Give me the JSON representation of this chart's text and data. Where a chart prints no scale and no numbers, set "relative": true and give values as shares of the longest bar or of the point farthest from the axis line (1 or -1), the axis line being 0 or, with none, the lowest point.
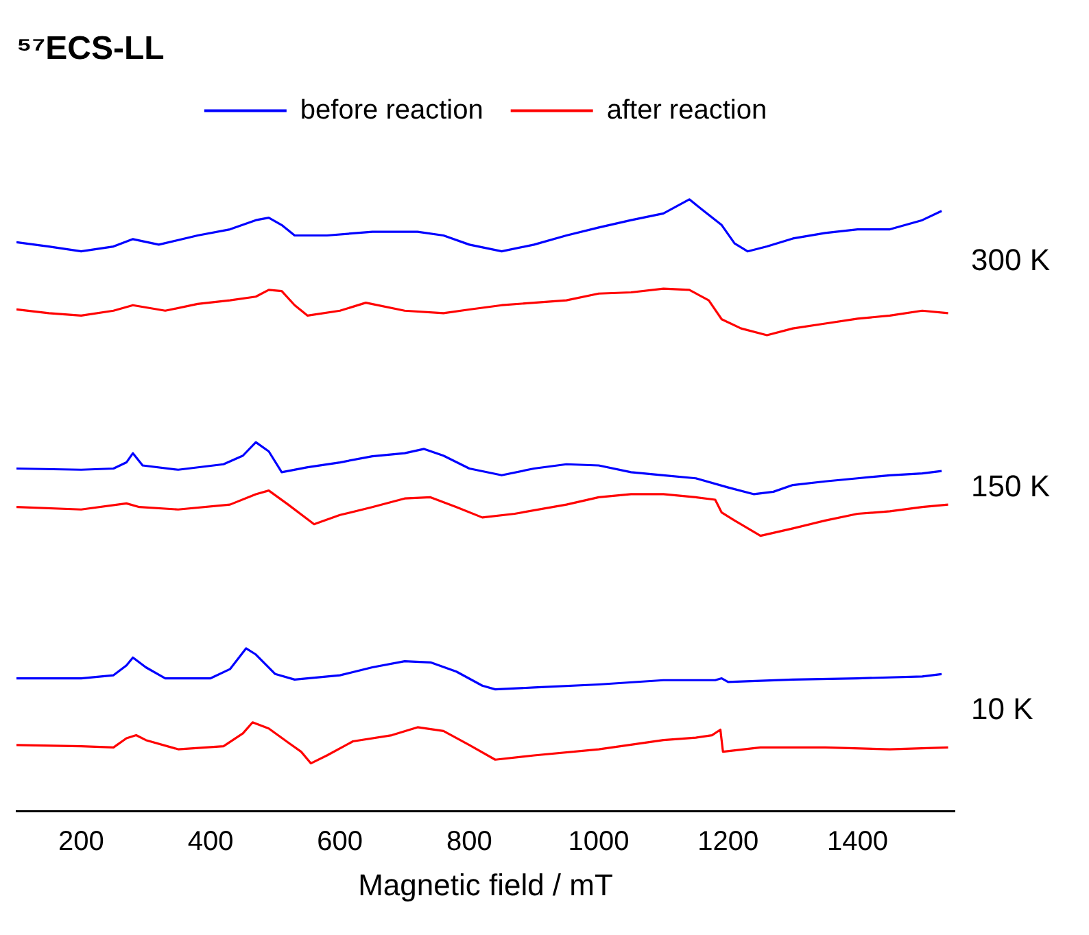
{
  "chart_data": {
    "type": "line",
    "title": "⁵⁷ECS-LL",
    "xlabel": "Magnetic field / mT",
    "relative": true,
    "xlim": [
      100,
      1550
    ],
    "xticks": [
      200,
      400,
      600,
      800,
      1000,
      1200,
      1400
    ],
    "grid": false,
    "legend": "top",
    "marker": "none",
    "line_style": "solid",
    "annotations": [
      "300 K",
      "150 K",
      "10 K"
    ],
    "series": [
      {
        "name": "before reaction",
        "color": "#0000ff",
        "x": [
          100,
          150,
          200,
          250,
          280,
          320,
          380,
          430,
          470,
          490,
          510,
          530,
          580,
          650,
          720,
          760,
          800,
          850,
          900,
          950,
          1000,
          1050,
          1100,
          1140,
          1160,
          1190,
          1210,
          1230,
          1260,
          1300,
          1350,
          1400,
          1450,
          1500,
          1530
        ],
        "values": [
          0.93,
          0.923,
          0.915,
          0.923,
          0.935,
          0.926,
          0.941,
          0.951,
          0.966,
          0.97,
          0.958,
          0.941,
          0.941,
          0.947,
          0.947,
          0.941,
          0.926,
          0.915,
          0.926,
          0.941,
          0.954,
          0.966,
          0.977,
          1.0,
          0.983,
          0.958,
          0.928,
          0.915,
          0.923,
          0.936,
          0.945,
          0.951,
          0.951,
          0.966,
          0.981
        ]
      },
      {
        "name": "after reaction",
        "color": "#ff0000",
        "x": [
          100,
          150,
          200,
          250,
          280,
          330,
          380,
          430,
          470,
          490,
          510,
          530,
          550,
          600,
          640,
          700,
          760,
          800,
          850,
          900,
          950,
          1000,
          1050,
          1100,
          1140,
          1170,
          1190,
          1220,
          1260,
          1300,
          1350,
          1400,
          1450,
          1500,
          1540
        ],
        "values": [
          0.82,
          0.814,
          0.81,
          0.818,
          0.827,
          0.818,
          0.829,
          0.835,
          0.841,
          0.852,
          0.85,
          0.827,
          0.81,
          0.818,
          0.831,
          0.818,
          0.814,
          0.82,
          0.827,
          0.831,
          0.835,
          0.846,
          0.848,
          0.854,
          0.852,
          0.835,
          0.804,
          0.789,
          0.778,
          0.789,
          0.797,
          0.805,
          0.81,
          0.818,
          0.814
        ]
      },
      {
        "color": "#0000ff",
        "x": [
          100,
          200,
          250,
          270,
          280,
          295,
          350,
          420,
          450,
          470,
          490,
          510,
          550,
          600,
          650,
          700,
          730,
          760,
          800,
          850,
          900,
          950,
          1000,
          1050,
          1100,
          1150,
          1200,
          1240,
          1270,
          1300,
          1350,
          1400,
          1450,
          1500,
          1530
        ],
        "values": [
          0.56,
          0.558,
          0.56,
          0.57,
          0.585,
          0.565,
          0.558,
          0.567,
          0.581,
          0.603,
          0.588,
          0.554,
          0.562,
          0.57,
          0.58,
          0.585,
          0.592,
          0.581,
          0.56,
          0.549,
          0.56,
          0.567,
          0.565,
          0.554,
          0.549,
          0.544,
          0.529,
          0.518,
          0.522,
          0.533,
          0.539,
          0.544,
          0.549,
          0.552,
          0.556
        ]
      },
      {
        "color": "#ff0000",
        "x": [
          100,
          200,
          270,
          290,
          350,
          430,
          470,
          490,
          520,
          560,
          600,
          650,
          700,
          740,
          780,
          820,
          870,
          950,
          1000,
          1050,
          1100,
          1150,
          1180,
          1190,
          1210,
          1250,
          1300,
          1350,
          1400,
          1450,
          1500,
          1540
        ],
        "values": [
          0.497,
          0.493,
          0.503,
          0.497,
          0.493,
          0.501,
          0.518,
          0.524,
          0.501,
          0.469,
          0.484,
          0.497,
          0.511,
          0.513,
          0.497,
          0.48,
          0.486,
          0.501,
          0.513,
          0.518,
          0.518,
          0.513,
          0.509,
          0.488,
          0.475,
          0.45,
          0.462,
          0.475,
          0.486,
          0.49,
          0.497,
          0.501
        ]
      },
      {
        "color": "#0000ff",
        "x": [
          100,
          200,
          250,
          270,
          280,
          300,
          330,
          400,
          430,
          455,
          470,
          500,
          530,
          600,
          650,
          700,
          740,
          780,
          820,
          840,
          900,
          1000,
          1100,
          1180,
          1190,
          1200,
          1300,
          1400,
          1500,
          1530
        ],
        "values": [
          0.217,
          0.217,
          0.222,
          0.238,
          0.251,
          0.235,
          0.217,
          0.217,
          0.232,
          0.266,
          0.256,
          0.224,
          0.215,
          0.222,
          0.235,
          0.245,
          0.243,
          0.228,
          0.205,
          0.199,
          0.202,
          0.207,
          0.214,
          0.214,
          0.217,
          0.211,
          0.215,
          0.217,
          0.22,
          0.224
        ]
      },
      {
        "color": "#ff0000",
        "x": [
          100,
          200,
          250,
          270,
          285,
          300,
          350,
          420,
          450,
          465,
          490,
          520,
          540,
          555,
          580,
          620,
          680,
          720,
          760,
          800,
          840,
          900,
          1000,
          1100,
          1150,
          1175,
          1188,
          1192,
          1250,
          1350,
          1450,
          1540
        ],
        "values": [
          0.108,
          0.106,
          0.104,
          0.119,
          0.124,
          0.116,
          0.101,
          0.106,
          0.127,
          0.145,
          0.135,
          0.112,
          0.097,
          0.078,
          0.091,
          0.114,
          0.124,
          0.137,
          0.131,
          0.108,
          0.084,
          0.091,
          0.101,
          0.116,
          0.12,
          0.124,
          0.133,
          0.097,
          0.104,
          0.104,
          0.101,
          0.104
        ]
      }
    ]
  }
}
